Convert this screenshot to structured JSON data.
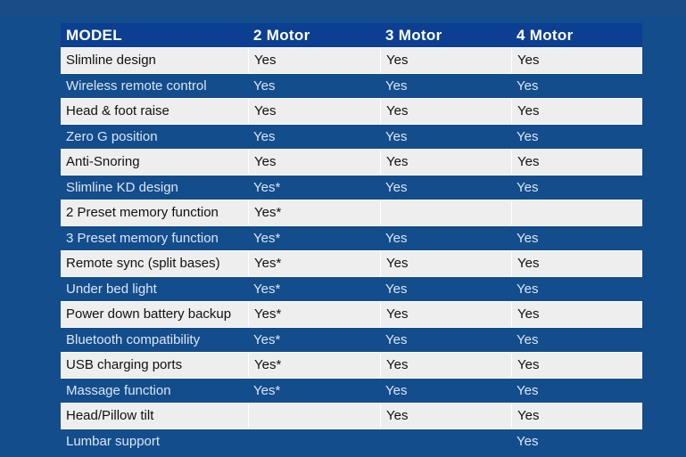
{
  "table": {
    "headers": [
      "MODEL",
      "2 Motor",
      "3 Motor",
      "4 Motor"
    ],
    "rows": [
      [
        "Slimline design",
        "Yes",
        "Yes",
        "Yes"
      ],
      [
        "Wireless remote control",
        "Yes",
        "Yes",
        "Yes"
      ],
      [
        "Head & foot raise",
        "Yes",
        "Yes",
        "Yes"
      ],
      [
        "Zero G position",
        "Yes",
        "Yes",
        "Yes"
      ],
      [
        "Anti-Snoring",
        "Yes",
        "Yes",
        "Yes"
      ],
      [
        "Slimline KD design",
        "Yes*",
        "Yes",
        "Yes"
      ],
      [
        "2 Preset memory function",
        "Yes*",
        "",
        ""
      ],
      [
        "3 Preset memory function",
        "Yes*",
        "Yes",
        "Yes"
      ],
      [
        "Remote sync (split bases)",
        "Yes*",
        "Yes",
        "Yes"
      ],
      [
        "Under bed light",
        "Yes*",
        "Yes",
        "Yes"
      ],
      [
        "Power down battery backup",
        "Yes*",
        "Yes",
        "Yes"
      ],
      [
        "Bluetooth compatibility",
        "Yes*",
        "Yes",
        "Yes"
      ],
      [
        "USB charging ports",
        "Yes*",
        "Yes",
        "Yes"
      ],
      [
        "Massage function",
        "Yes*",
        "Yes",
        "Yes"
      ],
      [
        "Head/Pillow tilt",
        "",
        "Yes",
        "Yes"
      ],
      [
        "Lumbar support",
        "",
        "",
        "Yes"
      ]
    ]
  },
  "colors": {
    "background": "#134d8c",
    "header": "#0c3f91",
    "light_row": "#eeeeee",
    "dark_row_text": "#dce6f2"
  }
}
